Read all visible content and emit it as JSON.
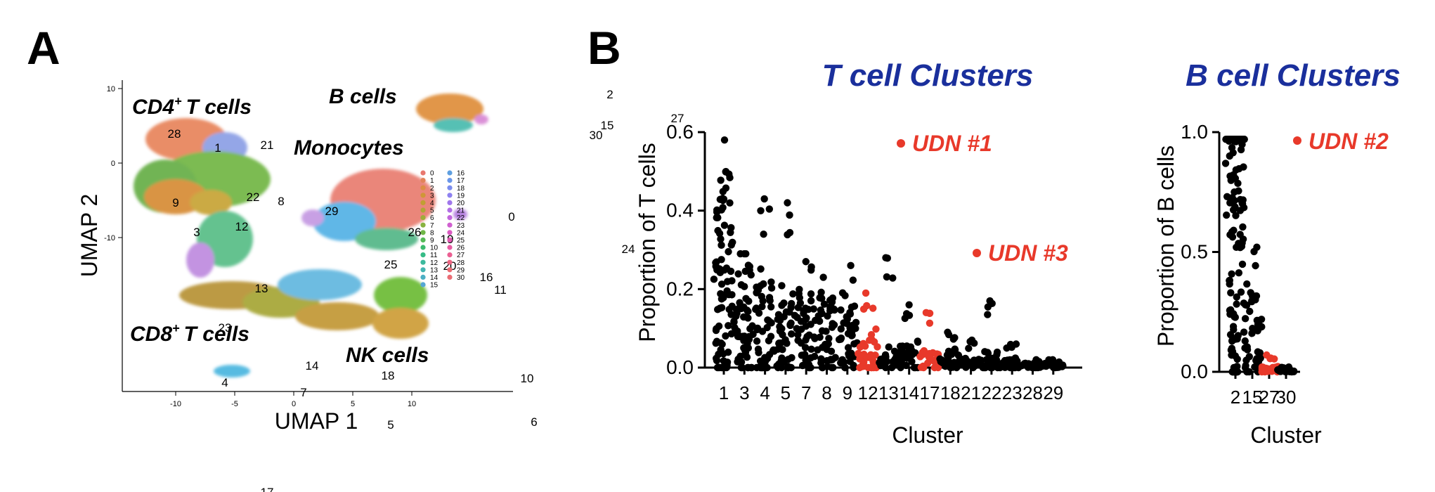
{
  "panels": {
    "a": "A",
    "b": "B"
  },
  "umap": {
    "xlabel": "UMAP 1",
    "ylabel": "UMAP 2",
    "xticks": [
      "-10",
      "-5",
      "0",
      "5",
      "10"
    ],
    "yticks": [
      "10",
      "0",
      "-10"
    ],
    "cell_type_labels": [
      "CD4",
      "T cells",
      "B cells",
      "Monocytes",
      "CD8",
      "T cells",
      "NK cells"
    ],
    "sup": "+",
    "legend_col1": [
      "0",
      "1",
      "2",
      "3",
      "4",
      "5",
      "6",
      "7",
      "8",
      "9",
      "10",
      "11",
      "12",
      "13",
      "14",
      "15"
    ],
    "legend_col2": [
      "16",
      "17",
      "18",
      "19",
      "20",
      "21",
      "22",
      "23",
      "24",
      "25",
      "26",
      "27",
      "28",
      "29",
      "30"
    ]
  },
  "tcell": {
    "title": "T cell Clusters",
    "ylabel": "Proportion of T cells",
    "xlabel": "Cluster",
    "annotations": [
      "UDN #1",
      "UDN #3"
    ]
  },
  "bcell": {
    "title": "B cell Clusters",
    "ylabel": "Proportion of B cells",
    "xlabel": "Cluster",
    "annotations": [
      "UDN #2"
    ]
  },
  "colors": {
    "title_blue": "#1a2f9c",
    "highlight_red": "#e8392a",
    "points": "#000000"
  },
  "chart_data": [
    {
      "type": "scatter",
      "title": "T cell Clusters",
      "xlabel": "Cluster",
      "ylabel": "Proportion of T cells",
      "ylim": [
        0,
        0.6
      ],
      "yticks": [
        0.0,
        0.2,
        0.4,
        0.6
      ],
      "categories": [
        "1",
        "3",
        "4",
        "5",
        "7",
        "8",
        "9",
        "12",
        "13",
        "14",
        "17",
        "18",
        "21",
        "22",
        "23",
        "28",
        "29"
      ],
      "highlighted": [
        "12",
        "17"
      ],
      "max_values": [
        0.58,
        0.29,
        0.43,
        0.42,
        0.27,
        0.23,
        0.26,
        0.19,
        0.28,
        0.16,
        0.14,
        0.09,
        0.07,
        0.17,
        0.06,
        0.02,
        0.02
      ],
      "median_values": [
        0.22,
        0.12,
        0.1,
        0.08,
        0.08,
        0.08,
        0.07,
        0.04,
        0.02,
        0.03,
        0.02,
        0.02,
        0.01,
        0.02,
        0.01,
        0.005,
        0.005
      ]
    },
    {
      "type": "scatter",
      "title": "B cell Clusters",
      "xlabel": "Cluster",
      "ylabel": "Proportion of B cells",
      "ylim": [
        0,
        1.0
      ],
      "yticks": [
        0.0,
        0.5,
        1.0
      ],
      "categories": [
        "2",
        "15",
        "27",
        "30"
      ],
      "highlighted": [
        "27"
      ],
      "max_values": [
        0.97,
        0.52,
        0.07,
        0.02
      ],
      "median_values": [
        0.85,
        0.15,
        0.01,
        0.005
      ]
    }
  ]
}
